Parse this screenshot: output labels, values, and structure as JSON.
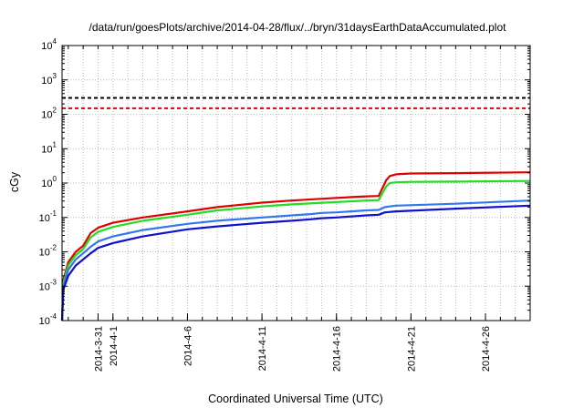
{
  "chart_data": {
    "type": "line",
    "title": "/data/run/goesPlots/archive/2014-04-28/flux/../bryn/31daysEarthDataAccumulated.plot",
    "xlabel": "Coordinated Universal Time (UTC)",
    "ylabel": "cGy",
    "yscale": "log",
    "ylim": [
      0.0001,
      10000
    ],
    "xlim": [
      "2014-03-28T14:00",
      "2014-04-28T23:59"
    ],
    "grid": true,
    "legend": "none",
    "x_ticks": [
      "2014-3-31",
      "2014-4-1",
      "2014-4-6",
      "2014-4-11",
      "2014-4-16",
      "2014-4-21",
      "2014-4-26"
    ],
    "y_ticks": [
      {
        "value": 0.0001,
        "base": "10",
        "exp": "-4"
      },
      {
        "value": 0.001,
        "base": "10",
        "exp": "-3"
      },
      {
        "value": 0.01,
        "base": "10",
        "exp": "-2"
      },
      {
        "value": 0.1,
        "base": "10",
        "exp": "-1"
      },
      {
        "value": 1,
        "base": "10",
        "exp": "0"
      },
      {
        "value": 10,
        "base": "10",
        "exp": "1"
      },
      {
        "value": 100,
        "base": "10",
        "exp": "2"
      },
      {
        "value": 1000,
        "base": "10",
        "exp": "3"
      },
      {
        "value": 10000,
        "base": "10",
        "exp": "4"
      }
    ],
    "reference_lines": [
      {
        "value": 300,
        "color": "#000000",
        "style": "dashed"
      },
      {
        "value": 150,
        "color": "#e00000",
        "style": "dashed"
      }
    ],
    "series": [
      {
        "color": "#e00000",
        "points": [
          [
            "2014-03-28T14:00",
            0.0001
          ],
          [
            "2014-03-28T16:00",
            0.0015
          ],
          [
            "2014-03-29T00:00",
            0.005
          ],
          [
            "2014-03-29T12:00",
            0.01
          ],
          [
            "2014-03-30T00:00",
            0.015
          ],
          [
            "2014-03-30T12:00",
            0.035
          ],
          [
            "2014-03-31T00:00",
            0.05
          ],
          [
            "2014-04-01T00:00",
            0.07
          ],
          [
            "2014-04-03T00:00",
            0.1
          ],
          [
            "2014-04-06T00:00",
            0.15
          ],
          [
            "2014-04-08T00:00",
            0.2
          ],
          [
            "2014-04-11T00:00",
            0.27
          ],
          [
            "2014-04-13T00:00",
            0.31
          ],
          [
            "2014-04-16T00:00",
            0.37
          ],
          [
            "2014-04-18T00:00",
            0.41
          ],
          [
            "2014-04-18T20:00",
            0.42
          ],
          [
            "2014-04-19T08:00",
            1.2
          ],
          [
            "2014-04-19T14:00",
            1.6
          ],
          [
            "2014-04-20T00:00",
            1.8
          ],
          [
            "2014-04-21T00:00",
            1.9
          ],
          [
            "2014-04-24T00:00",
            1.95
          ],
          [
            "2014-04-28T23:59",
            2.05
          ]
        ]
      },
      {
        "color": "#22dd22",
        "points": [
          [
            "2014-03-28T14:00",
            0.0001
          ],
          [
            "2014-03-28T16:00",
            0.0012
          ],
          [
            "2014-03-29T00:00",
            0.004
          ],
          [
            "2014-03-29T12:00",
            0.008
          ],
          [
            "2014-03-30T00:00",
            0.012
          ],
          [
            "2014-03-30T12:00",
            0.026
          ],
          [
            "2014-03-31T00:00",
            0.038
          ],
          [
            "2014-04-01T00:00",
            0.053
          ],
          [
            "2014-04-03T00:00",
            0.08
          ],
          [
            "2014-04-06T00:00",
            0.12
          ],
          [
            "2014-04-08T00:00",
            0.16
          ],
          [
            "2014-04-11T00:00",
            0.21
          ],
          [
            "2014-04-13T00:00",
            0.24
          ],
          [
            "2014-04-16T00:00",
            0.28
          ],
          [
            "2014-04-18T00:00",
            0.31
          ],
          [
            "2014-04-18T20:00",
            0.32
          ],
          [
            "2014-04-19T08:00",
            0.8
          ],
          [
            "2014-04-19T14:00",
            1.0
          ],
          [
            "2014-04-20T00:00",
            1.05
          ],
          [
            "2014-04-21T00:00",
            1.08
          ],
          [
            "2014-04-24T00:00",
            1.1
          ],
          [
            "2014-04-28T23:59",
            1.15
          ]
        ]
      },
      {
        "color": "#3377ee",
        "points": [
          [
            "2014-03-28T14:00",
            0.0001
          ],
          [
            "2014-03-28T16:00",
            0.001
          ],
          [
            "2014-03-29T00:00",
            0.003
          ],
          [
            "2014-03-29T12:00",
            0.006
          ],
          [
            "2014-03-30T00:00",
            0.009
          ],
          [
            "2014-03-30T12:00",
            0.014
          ],
          [
            "2014-03-31T00:00",
            0.02
          ],
          [
            "2014-04-01T00:00",
            0.028
          ],
          [
            "2014-04-03T00:00",
            0.043
          ],
          [
            "2014-04-06T00:00",
            0.065
          ],
          [
            "2014-04-08T00:00",
            0.08
          ],
          [
            "2014-04-11T00:00",
            0.1
          ],
          [
            "2014-04-13T00:00",
            0.115
          ],
          [
            "2014-04-14T06:00",
            0.125
          ],
          [
            "2014-04-15T00:00",
            0.135
          ],
          [
            "2014-04-16T00:00",
            0.14
          ],
          [
            "2014-04-18T00:00",
            0.16
          ],
          [
            "2014-04-18T20:00",
            0.165
          ],
          [
            "2014-04-19T06:00",
            0.2
          ],
          [
            "2014-04-20T00:00",
            0.22
          ],
          [
            "2014-04-24T00:00",
            0.25
          ],
          [
            "2014-04-28T23:59",
            0.31
          ]
        ]
      },
      {
        "color": "#1111cc",
        "points": [
          [
            "2014-03-28T14:00",
            0.0001
          ],
          [
            "2014-03-28T16:00",
            0.0008
          ],
          [
            "2014-03-29T00:00",
            0.002
          ],
          [
            "2014-03-29T12:00",
            0.004
          ],
          [
            "2014-03-30T00:00",
            0.006
          ],
          [
            "2014-03-30T12:00",
            0.009
          ],
          [
            "2014-03-31T00:00",
            0.013
          ],
          [
            "2014-04-01T00:00",
            0.018
          ],
          [
            "2014-04-03T00:00",
            0.028
          ],
          [
            "2014-04-06T00:00",
            0.045
          ],
          [
            "2014-04-08T00:00",
            0.055
          ],
          [
            "2014-04-11T00:00",
            0.07
          ],
          [
            "2014-04-13T00:00",
            0.08
          ],
          [
            "2014-04-14T06:00",
            0.088
          ],
          [
            "2014-04-15T00:00",
            0.095
          ],
          [
            "2014-04-16T00:00",
            0.1
          ],
          [
            "2014-04-18T00:00",
            0.115
          ],
          [
            "2014-04-18T20:00",
            0.12
          ],
          [
            "2014-04-19T06:00",
            0.14
          ],
          [
            "2014-04-20T00:00",
            0.15
          ],
          [
            "2014-04-24T00:00",
            0.18
          ],
          [
            "2014-04-28T23:59",
            0.22
          ]
        ]
      }
    ]
  }
}
